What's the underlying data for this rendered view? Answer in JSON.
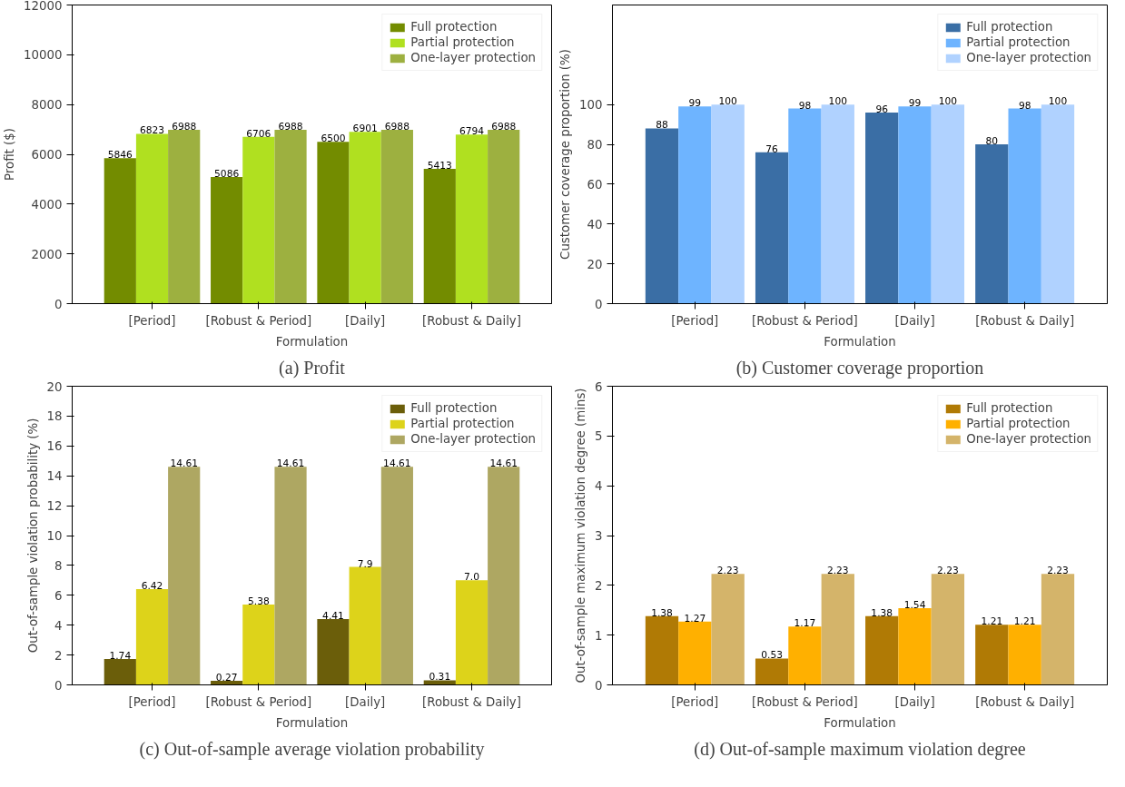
{
  "chart_data": [
    {
      "type": "bar",
      "categories": [
        "[Period]",
        "[Robust & Period]",
        "[Daily]",
        "[Robust & Daily]"
      ],
      "xlabel": "Formulation",
      "ylabel": "Profit ($)",
      "annotations": [
        "(a) Profit"
      ],
      "ylim": [
        0,
        12000
      ],
      "yticks": [
        0,
        2000,
        4000,
        6000,
        8000,
        10000,
        12000
      ],
      "grid": false,
      "legend": "top right",
      "data_labels": true,
      "series": [
        {
          "name": "Full protection",
          "color": "#738c00",
          "values": [
            5846,
            5086,
            6500,
            5413
          ]
        },
        {
          "name": "Partial protection",
          "color": "#b0e020",
          "values": [
            6823,
            6706,
            6901,
            6794
          ]
        },
        {
          "name": "One-layer protection",
          "color": "#9db040",
          "values": [
            6988,
            6988,
            6988,
            6988
          ]
        }
      ]
    },
    {
      "type": "bar",
      "categories": [
        "[Period]",
        "[Robust & Period]",
        "[Daily]",
        "[Robust & Daily]"
      ],
      "xlabel": "Formulation",
      "ylabel": "Customer coverage proportion (%)",
      "annotations": [
        "(b) Customer coverage proportion"
      ],
      "ylim": [
        0,
        150
      ],
      "yticks": [
        0,
        20,
        40,
        60,
        80,
        100
      ],
      "grid": false,
      "legend": "top right",
      "data_labels": true,
      "series": [
        {
          "name": "Full protection",
          "color": "#3a6ea5",
          "values": [
            88,
            76,
            96,
            80
          ]
        },
        {
          "name": "Partial protection",
          "color": "#6eb4ff",
          "values": [
            99,
            98,
            99,
            98
          ]
        },
        {
          "name": "One-layer protection",
          "color": "#b0d2ff",
          "values": [
            100,
            100,
            100,
            100
          ]
        }
      ]
    },
    {
      "type": "bar",
      "categories": [
        "[Period]",
        "[Robust & Period]",
        "[Daily]",
        "[Robust & Daily]"
      ],
      "xlabel": "Formulation",
      "ylabel": "Out-of-sample violation probability (%)",
      "annotations": [
        "(c) Out-of-sample average violation probability"
      ],
      "ylim": [
        0,
        20
      ],
      "yticks": [
        0,
        2,
        4,
        6,
        8,
        10,
        12,
        14,
        16,
        18,
        20
      ],
      "grid": false,
      "legend": "top right",
      "data_labels": true,
      "series": [
        {
          "name": "Full protection",
          "color": "#6b5e0a",
          "values": [
            1.74,
            0.27,
            4.41,
            0.31
          ]
        },
        {
          "name": "Partial protection",
          "color": "#ddd31a",
          "values": [
            6.42,
            5.38,
            7.9,
            7.0
          ],
          "value_labels": [
            "6.42",
            "5.38",
            "7.9",
            "7.0"
          ]
        },
        {
          "name": "One-layer protection",
          "color": "#aea762",
          "values": [
            14.61,
            14.61,
            14.61,
            14.61
          ]
        }
      ]
    },
    {
      "type": "bar",
      "categories": [
        "[Period]",
        "[Robust & Period]",
        "[Daily]",
        "[Robust & Daily]"
      ],
      "xlabel": "Formulation",
      "ylabel": "Out-of-sample maximum violation degree (mins)",
      "annotations": [
        "(d) Out-of-sample maximum violation degree"
      ],
      "ylim": [
        0,
        6
      ],
      "yticks": [
        0,
        1,
        2,
        3,
        4,
        5,
        6
      ],
      "grid": false,
      "legend": "top right",
      "data_labels": true,
      "series": [
        {
          "name": "Full protection",
          "color": "#b07a05",
          "values": [
            1.38,
            0.53,
            1.38,
            1.21
          ]
        },
        {
          "name": "Partial protection",
          "color": "#ffb000",
          "values": [
            1.27,
            1.17,
            1.54,
            1.21
          ]
        },
        {
          "name": "One-layer protection",
          "color": "#d4b46a",
          "values": [
            2.23,
            2.23,
            2.23,
            2.23
          ]
        }
      ]
    }
  ]
}
